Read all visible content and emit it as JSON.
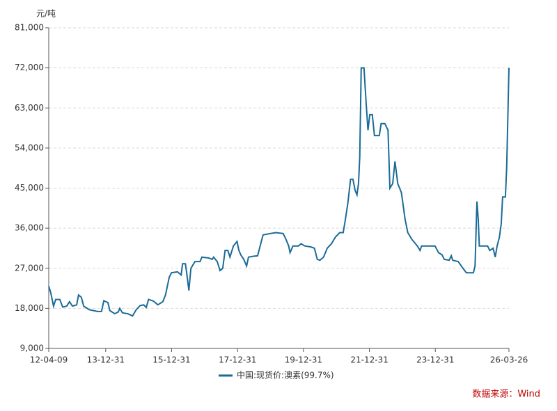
{
  "chart_data": {
    "type": "line",
    "y_axis_label": "元/吨",
    "ylim": [
      9000,
      81000
    ],
    "yticks": [
      {
        "value": 9000,
        "label": "9,000"
      },
      {
        "value": 18000,
        "label": "18,000"
      },
      {
        "value": 27000,
        "label": "27,000"
      },
      {
        "value": 36000,
        "label": "36,000"
      },
      {
        "value": 45000,
        "label": "45,000"
      },
      {
        "value": 54000,
        "label": "54,000"
      },
      {
        "value": 63000,
        "label": "63,000"
      },
      {
        "value": 72000,
        "label": "72,000"
      },
      {
        "value": 81000,
        "label": "81,000"
      }
    ],
    "xlim": [
      "12-04-09",
      "26-03-26"
    ],
    "xticks": [
      "12-04-09",
      "13-12-31",
      "15-12-31",
      "17-12-31",
      "19-12-31",
      "21-12-31",
      "23-12-31",
      "26-03-26"
    ],
    "grid": true,
    "source": "数据来源：Wind",
    "x": [
      "12-04-09",
      "12-05-01",
      "12-06-01",
      "12-06-25",
      "12-08-10",
      "12-09-10",
      "12-10-25",
      "12-11-25",
      "12-12-28",
      "13-02-12",
      "13-03-05",
      "13-04-05",
      "13-05-01",
      "13-07-01",
      "13-10-01",
      "13-11-15",
      "13-12-10",
      "14-01-25",
      "14-02-15",
      "14-04-10",
      "14-05-20",
      "14-06-05",
      "14-07-05",
      "14-09-01",
      "14-10-25",
      "14-12-05",
      "15-01-15",
      "15-02-25",
      "15-03-25",
      "15-04-20",
      "15-06-15",
      "15-08-01",
      "15-09-25",
      "15-10-25",
      "15-12-05",
      "15-12-30",
      "16-03-05",
      "16-04-15",
      "16-05-01",
      "16-06-01",
      "16-06-15",
      "16-07-10",
      "16-08-01",
      "16-09-15",
      "16-11-10",
      "16-12-01",
      "17-02-15",
      "17-03-25",
      "17-04-10",
      "17-05-20",
      "17-06-20",
      "17-07-20",
      "17-08-15",
      "17-09-15",
      "17-10-08",
      "17-11-15",
      "17-12-25",
      "18-01-15",
      "18-02-05",
      "18-03-10",
      "18-04-10",
      "18-05-01",
      "18-06-25",
      "18-08-10",
      "18-09-20",
      "18-10-10",
      "18-12-28",
      "19-03-01",
      "19-05-20",
      "19-06-20",
      "19-07-20",
      "19-08-05",
      "19-09-05",
      "19-11-05",
      "19-12-05",
      "20-01-15",
      "20-03-20",
      "20-05-01",
      "20-06-01",
      "20-07-01",
      "20-08-10",
      "20-09-20",
      "20-11-05",
      "20-12-20",
      "21-02-05",
      "21-03-15",
      "21-04-05",
      "21-05-05",
      "21-06-05",
      "21-07-01",
      "21-07-25",
      "21-08-15",
      "21-09-01",
      "21-09-15",
      "21-10-01",
      "21-11-01",
      "21-11-25",
      "21-12-15",
      "22-01-04",
      "22-02-01",
      "22-02-25",
      "22-04-20",
      "22-05-10",
      "22-06-20",
      "22-07-25",
      "22-08-15",
      "22-09-15",
      "22-10-10",
      "22-11-10",
      "22-12-20",
      "23-01-30",
      "23-03-01",
      "23-04-15",
      "23-06-15",
      "23-07-15",
      "23-08-01",
      "23-10-10",
      "23-12-28",
      "24-02-05",
      "24-03-15",
      "24-04-08",
      "24-06-01",
      "24-06-25",
      "24-07-10",
      "24-09-10",
      "24-11-01",
      "24-12-10",
      "25-02-25",
      "25-03-15",
      "25-04-05",
      "25-04-20",
      "25-05-01",
      "25-08-01",
      "25-08-25",
      "25-10-01",
      "25-10-25",
      "25-11-15",
      "25-12-10",
      "25-12-30",
      "26-01-15",
      "26-02-15",
      "26-03-01",
      "26-03-26"
    ],
    "series": [
      {
        "name": "中国:现货价:澳素(99.7%)",
        "color": "#1a6b96",
        "values": [
          23000,
          21500,
          18500,
          20000,
          20000,
          18300,
          18500,
          19500,
          18500,
          18800,
          21000,
          20500,
          18500,
          17700,
          17300,
          17300,
          19700,
          19300,
          17500,
          16800,
          17200,
          18000,
          17000,
          16800,
          16300,
          17700,
          18600,
          18800,
          18200,
          20000,
          19600,
          18800,
          19500,
          21000,
          25000,
          26000,
          26200,
          25500,
          28000,
          28000,
          26000,
          22000,
          27000,
          28500,
          28500,
          29500,
          29300,
          29000,
          29500,
          28500,
          26500,
          27000,
          31000,
          31000,
          29500,
          32000,
          33000,
          31000,
          30000,
          29000,
          27500,
          29500,
          29700,
          29800,
          33000,
          34500,
          34800,
          35000,
          34800,
          33500,
          32000,
          30500,
          32000,
          32000,
          32500,
          32000,
          31800,
          31500,
          29000,
          28800,
          29500,
          31500,
          32500,
          34000,
          35000,
          35000,
          37500,
          41500,
          47000,
          47000,
          44500,
          43500,
          46000,
          52000,
          72000,
          72000,
          64000,
          58000,
          61500,
          61500,
          56800,
          56800,
          59500,
          59500,
          58000,
          45000,
          46000,
          51000,
          46000,
          44000,
          38000,
          35000,
          33500,
          32000,
          31000,
          32000,
          32000,
          32000,
          30500,
          30000,
          29000,
          28800,
          29800,
          28800,
          28500,
          27000,
          26000,
          26000,
          27500,
          42000,
          38000,
          32000,
          32000,
          31000,
          31500,
          29500,
          32000,
          34000,
          37000,
          43000,
          43000,
          50000,
          72000
        ]
      }
    ]
  }
}
